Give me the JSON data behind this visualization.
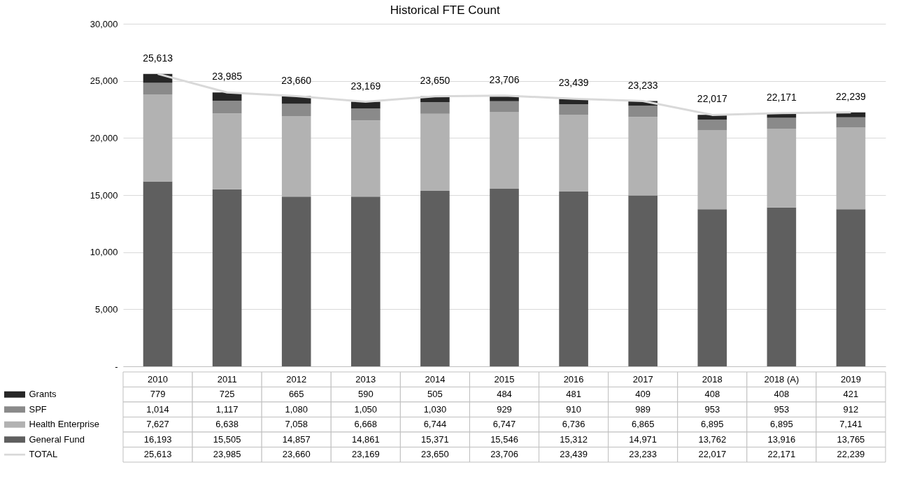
{
  "chart_data": {
    "type": "bar",
    "title": "Historical FTE Count",
    "stacked": true,
    "categories": [
      "2010",
      "2011",
      "2012",
      "2013",
      "2014",
      "2015",
      "2016",
      "2017",
      "2018",
      "2018 (A)",
      "2019"
    ],
    "series": [
      {
        "name": "General Fund",
        "color": "#5f5f5f",
        "values": [
          16193,
          15505,
          14857,
          14861,
          15371,
          15546,
          15312,
          14971,
          13762,
          13916,
          13765
        ],
        "value_labels": [
          "16,193",
          "15,505",
          "14,857",
          "14,861",
          "15,371",
          "15,546",
          "15,312",
          "14,971",
          "13,762",
          "13,916",
          "13,765"
        ]
      },
      {
        "name": "Health Enterprise",
        "color": "#b2b2b2",
        "values": [
          7627,
          6638,
          7058,
          6668,
          6744,
          6747,
          6736,
          6865,
          6895,
          6895,
          7141
        ],
        "value_labels": [
          "7,627",
          "6,638",
          "7,058",
          "6,668",
          "6,744",
          "6,747",
          "6,736",
          "6,865",
          "6,895",
          "6,895",
          "7,141"
        ]
      },
      {
        "name": "SPF",
        "color": "#8a8a8a",
        "values": [
          1014,
          1117,
          1080,
          1050,
          1030,
          929,
          910,
          989,
          953,
          953,
          912
        ],
        "value_labels": [
          "1,014",
          "1,117",
          "1,080",
          "1,050",
          "1,030",
          "929",
          "910",
          "989",
          "953",
          "953",
          "912"
        ]
      },
      {
        "name": "Grants",
        "color": "#262626",
        "values": [
          779,
          725,
          665,
          590,
          505,
          484,
          481,
          409,
          408,
          408,
          421
        ],
        "value_labels": [
          "779",
          "725",
          "665",
          "590",
          "505",
          "484",
          "481",
          "409",
          "408",
          "408",
          "421"
        ]
      },
      {
        "name": "TOTAL",
        "type": "line",
        "color": "#d9d9d9",
        "values": [
          25613,
          23985,
          23660,
          23169,
          23650,
          23706,
          23439,
          23233,
          22017,
          22171,
          22239
        ],
        "value_labels": [
          "25,613",
          "23,985",
          "23,660",
          "23,169",
          "23,650",
          "23,706",
          "23,439",
          "23,233",
          "22,017",
          "22,171",
          "22,239"
        ]
      }
    ],
    "ylim": [
      0,
      30000
    ],
    "yticks": [
      {
        "value": 0,
        "label": "-"
      },
      {
        "value": 5000,
        "label": "5,000"
      },
      {
        "value": 10000,
        "label": "10,000"
      },
      {
        "value": 15000,
        "label": "15,000"
      },
      {
        "value": 20000,
        "label": "20,000"
      },
      {
        "value": 25000,
        "label": "25,000"
      },
      {
        "value": 30000,
        "label": "30,000"
      }
    ],
    "grid": "y",
    "legend": "bottom"
  }
}
